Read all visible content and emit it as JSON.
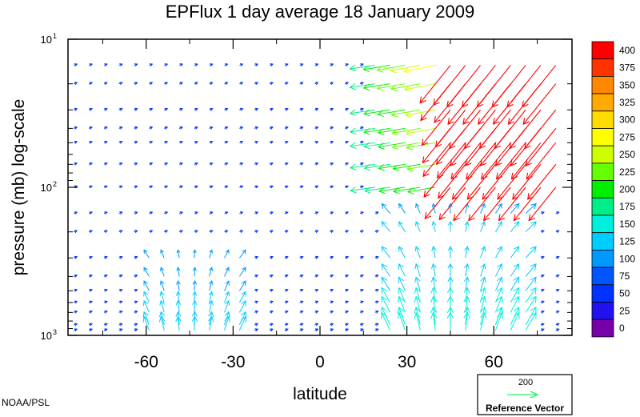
{
  "chart_data": {
    "type": "vector-field",
    "title": "EPFlux  1 day average  18 January   2009",
    "xlabel": "latitude",
    "ylabel": "pressure (mb)  log-scale",
    "x_ticks": [
      "-60",
      "-30",
      "0",
      "30",
      "60"
    ],
    "x_tick_values": [
      -60,
      -30,
      0,
      30,
      60
    ],
    "xlim": [
      -87,
      87
    ],
    "y_scale": "log",
    "ylim": [
      1000,
      10
    ],
    "y_ticks": [
      {
        "value": 10,
        "base": "10",
        "exp": "1"
      },
      {
        "value": 100,
        "base": "10",
        "exp": "2"
      },
      {
        "value": 1000,
        "base": "10",
        "exp": "3"
      }
    ],
    "colorbar": {
      "labels": [
        "400",
        "375",
        "350",
        "325",
        "300",
        "275",
        "250",
        "225",
        "200",
        "175",
        "150",
        "125",
        "100",
        "75",
        "50",
        "25",
        "0"
      ],
      "colors": [
        "#ff0000",
        "#ff3300",
        "#ff8800",
        "#ffaa00",
        "#ffdd00",
        "#ffff00",
        "#ccff00",
        "#66ff00",
        "#00ee00",
        "#00ee88",
        "#00eedd",
        "#00ccff",
        "#0099ff",
        "#0055ff",
        "#0033ff",
        "#2211ee",
        "#7700aa"
      ]
    },
    "reference_vector": {
      "value": "200",
      "label": "Reference Vector",
      "color": "#33ee66"
    },
    "credit": "NOAA/PSL"
  }
}
